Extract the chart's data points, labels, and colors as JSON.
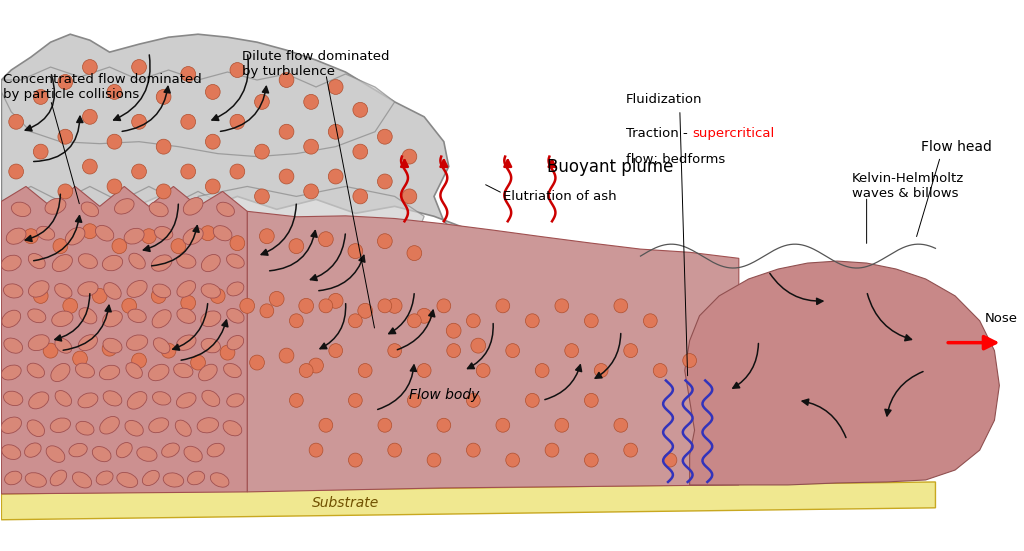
{
  "bg_color": "#ffffff",
  "plume_color": "#cecece",
  "plume_edge_color": "#888888",
  "flow_color": "#d4a0a0",
  "flow_head_color": "#c89090",
  "substrate_color": "#f0e890",
  "substrate_edge": "#c8a820",
  "particle_color": "#e07858",
  "particle_edge_color": "#b05030",
  "clast_color": "#d88878",
  "clast_edge_color": "#a05050",
  "arrow_color": "#111111",
  "red_arrow_color": "#cc0000",
  "blue_wave_color": "#3333bb",
  "text_color": "#000000",
  "traction_color": "#cc0000",
  "labels": {
    "buoyant_plume": "Buoyant plume",
    "elutriation": "Elutriation of ash",
    "kh_waves": "Kelvin-Helmholtz\nwaves & billows",
    "flow_head": "Flow head",
    "nose": "Nose",
    "flow_body": "Flow body",
    "substrate": "Substrate",
    "concentrated": "Concentrated flow dominated\nby particle collisions",
    "dilute": "Dilute flow dominated\nby turbulence",
    "fluidization": "Fluidization",
    "traction_black": "Traction - ",
    "traction_red": "supercritical",
    "traction_last": "\nflow; bedforms"
  },
  "label_fontsize": 10,
  "small_fontsize": 9.5
}
